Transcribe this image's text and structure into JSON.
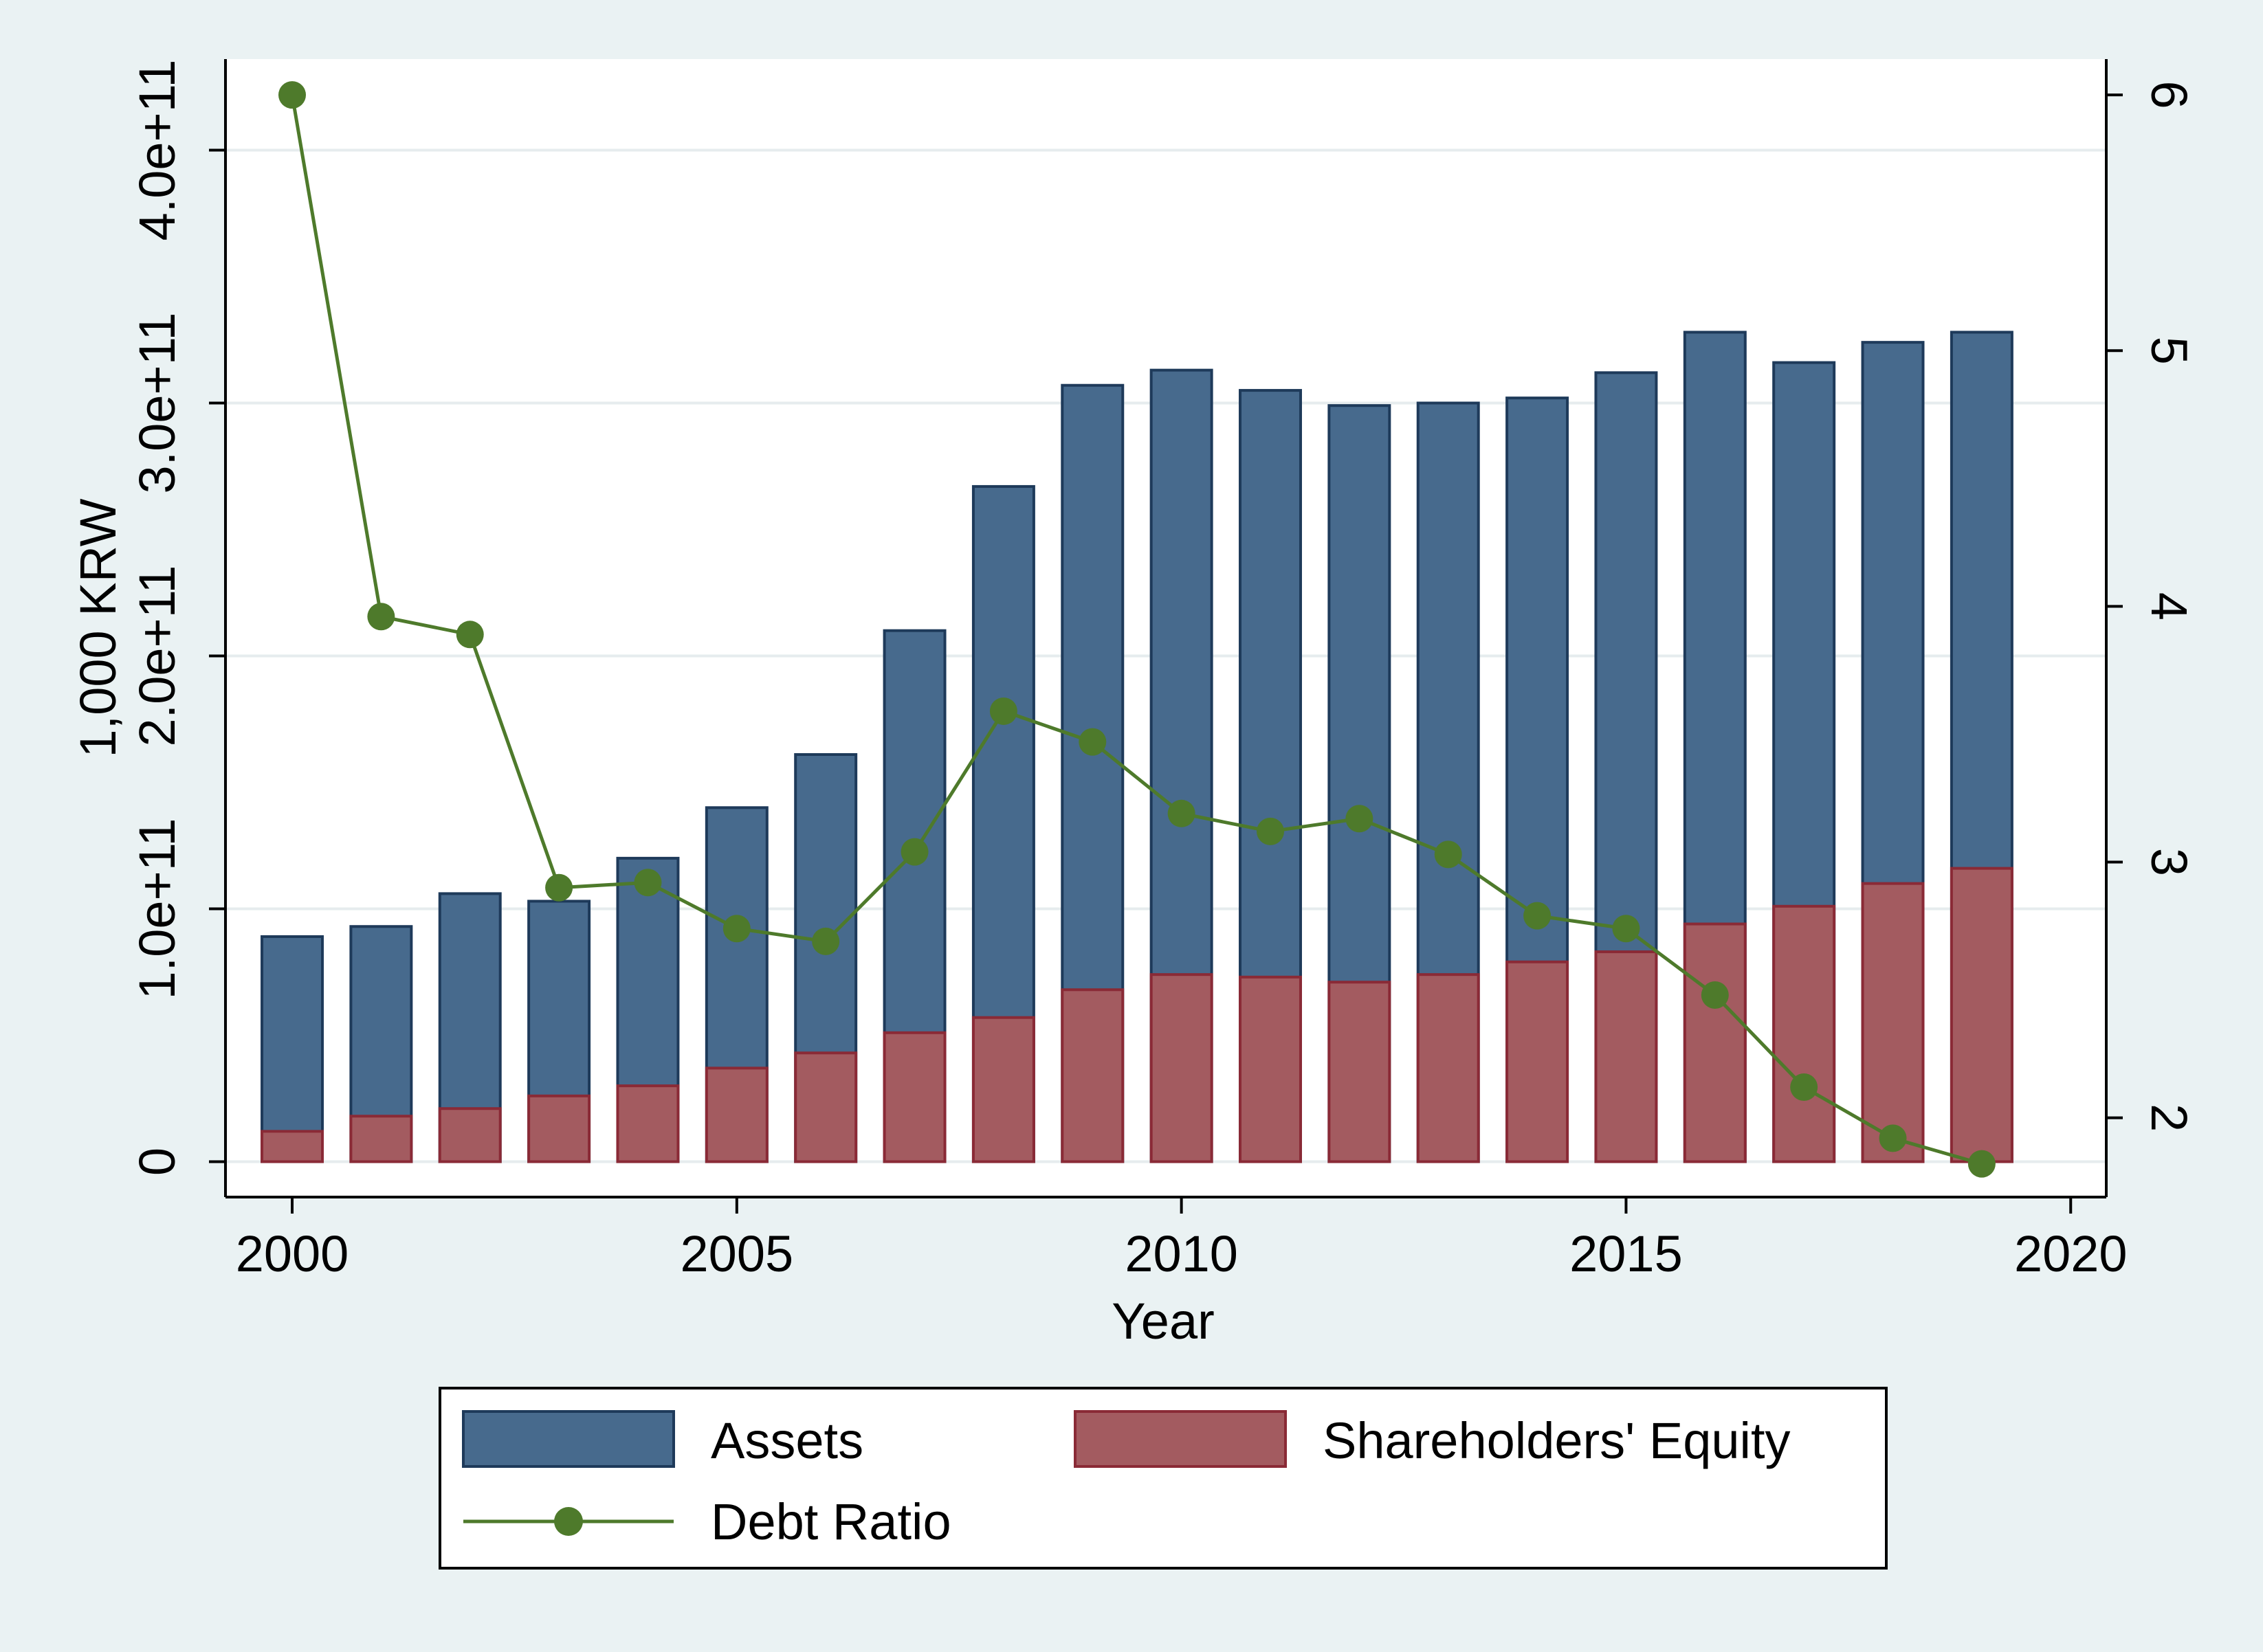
{
  "chart_data": {
    "type": "bar",
    "xlabel": "Year",
    "ylabel_left": "1,000 KRW",
    "ylabel_right": "",
    "x": [
      2000,
      2001,
      2002,
      2003,
      2004,
      2005,
      2006,
      2007,
      2008,
      2009,
      2010,
      2011,
      2012,
      2013,
      2014,
      2015,
      2016,
      2017,
      2018,
      2019
    ],
    "series": [
      {
        "name": "Assets",
        "kind": "bar",
        "axis": "left",
        "color": "#476a8d",
        "edge_color": "#1e3a5a",
        "values": [
          89000000000.0,
          93000000000.0,
          106000000000.0,
          103000000000.0,
          120000000000.0,
          140000000000.0,
          161000000000.0,
          210000000000.0,
          267000000000.0,
          307000000000.0,
          313000000000.0,
          305000000000.0,
          299000000000.0,
          300000000000.0,
          302000000000.0,
          312000000000.0,
          328000000000.0,
          316000000000.0,
          324000000000.0,
          328000000000.0
        ]
      },
      {
        "name": "Shareholders' Equity",
        "kind": "bar",
        "axis": "left",
        "color": "#a35b60",
        "edge_color": "#8a2a36",
        "values": [
          12000000000.0,
          18000000000.0,
          21000000000.0,
          26000000000.0,
          30000000000.0,
          37000000000.0,
          43000000000.0,
          51000000000.0,
          57000000000.0,
          68000000000.0,
          74000000000.0,
          73000000000.0,
          71000000000.0,
          74000000000.0,
          79000000000.0,
          83000000000.0,
          94000000000.0,
          101000000000.0,
          110000000000.0,
          116000000000.0
        ]
      },
      {
        "name": "Debt Ratio",
        "kind": "line",
        "axis": "right",
        "color": "#4e7a2b",
        "values": [
          6.0,
          3.96,
          3.89,
          2.9,
          2.92,
          2.74,
          2.69,
          3.04,
          3.59,
          3.47,
          3.19,
          3.12,
          3.17,
          3.03,
          2.79,
          2.74,
          2.48,
          2.12,
          1.92,
          1.82
        ]
      }
    ],
    "xlim": [
      1999.25,
      2020.4
    ],
    "xticks": [
      2000,
      2005,
      2010,
      2015,
      2020
    ],
    "xtick_labels": [
      "2000",
      "2005",
      "2010",
      "2015",
      "2020"
    ],
    "ylim_left": [
      -14000000000.0,
      436000000000.0
    ],
    "yticks_left": [
      0,
      100000000000.0,
      200000000000.0,
      300000000000.0,
      400000000000.0
    ],
    "ytick_labels_left": [
      "0",
      "1.0e+11",
      "2.0e+11",
      "3.0e+11",
      "4.0e+11"
    ],
    "ylim_right": [
      1.69,
      6.14
    ],
    "yticks_right": [
      2,
      3,
      4,
      5,
      6
    ],
    "ytick_labels_right": [
      "2",
      "3",
      "4",
      "5",
      "6"
    ],
    "grid": true,
    "legend_position": "bottom"
  }
}
